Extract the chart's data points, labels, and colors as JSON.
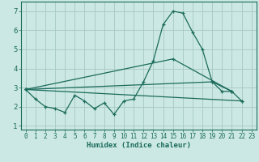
{
  "xlabel": "Humidex (Indice chaleur)",
  "bg_color": "#cce8e4",
  "grid_color": "#aaccc8",
  "line_color": "#1a6b5a",
  "xlim": [
    -0.5,
    23.5
  ],
  "ylim": [
    0.8,
    7.5
  ],
  "xticks": [
    0,
    1,
    2,
    3,
    4,
    5,
    6,
    7,
    8,
    9,
    10,
    11,
    12,
    13,
    14,
    15,
    16,
    17,
    18,
    19,
    20,
    21,
    22,
    23
  ],
  "yticks": [
    1,
    2,
    3,
    4,
    5,
    6,
    7
  ],
  "series0_x": [
    0,
    1,
    2,
    3,
    4,
    5,
    6,
    7,
    8,
    9,
    10,
    11,
    12,
    13,
    14,
    15,
    16,
    17,
    18,
    19,
    20,
    21,
    22
  ],
  "series0_y": [
    2.9,
    2.4,
    2.0,
    1.9,
    1.7,
    2.6,
    2.3,
    1.9,
    2.2,
    1.6,
    2.3,
    2.4,
    3.3,
    4.4,
    6.3,
    7.0,
    6.9,
    5.9,
    5.0,
    3.3,
    2.8,
    2.8,
    2.3
  ],
  "series1_x": [
    0,
    15,
    21
  ],
  "series1_y": [
    2.9,
    4.5,
    2.8
  ],
  "series2_x": [
    0,
    22
  ],
  "series2_y": [
    2.9,
    2.3
  ],
  "series3_x": [
    0,
    19,
    21
  ],
  "series3_y": [
    2.9,
    3.3,
    2.8
  ]
}
